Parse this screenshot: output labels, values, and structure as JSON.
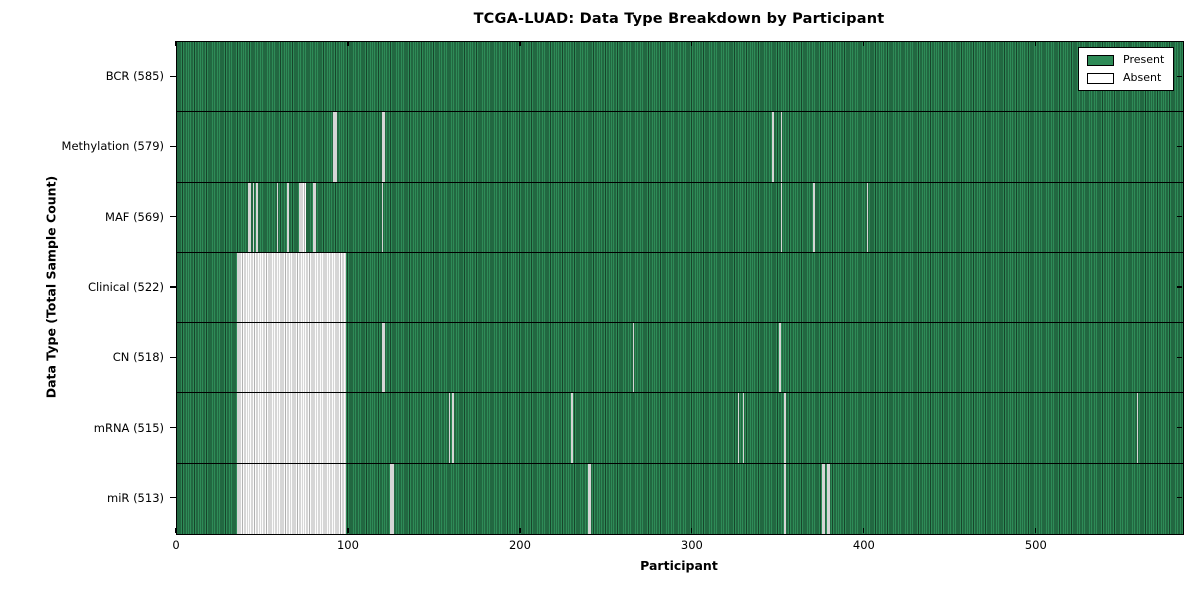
{
  "chart_data": {
    "type": "heatmap",
    "title": "TCGA-LUAD: Data Type Breakdown by Participant",
    "xlabel": "Participant",
    "ylabel": "Data Type (Total Sample Count)",
    "x_ticks": [
      0,
      100,
      200,
      300,
      400,
      500
    ],
    "x_range": [
      0,
      585
    ],
    "n_participants": 585,
    "grid": "per-participant column edges, black row separator lines",
    "colors": {
      "present": "#2E8B57",
      "absent": "#FCFCFC",
      "present_grid": "rgba(0,0,0,0.50)",
      "absent_grid": "rgba(0,0,0,0.30)",
      "border": "#000000"
    },
    "legend": {
      "position": "upper right",
      "entries": [
        {
          "label": "Present",
          "color": "#2E8B57"
        },
        {
          "label": "Absent",
          "color": "#FFFFFF"
        }
      ]
    },
    "rows": [
      {
        "name": "BCR",
        "total": 585,
        "label": "BCR (585)",
        "absent": []
      },
      {
        "name": "Methylation",
        "total": 579,
        "label": "Methylation (579)",
        "absent": [
          [
            91,
            92
          ],
          [
            119,
            120
          ],
          346,
          351
        ]
      },
      {
        "name": "MAF",
        "total": 569,
        "label": "MAF (569)",
        "absent": [
          [
            41,
            42
          ],
          44,
          46,
          58,
          64,
          [
            71,
            74
          ],
          [
            79,
            80
          ],
          119,
          351,
          370,
          401
        ]
      },
      {
        "name": "Clinical",
        "total": 522,
        "label": "Clinical (522)",
        "absent": [
          [
            35,
            97
          ]
        ]
      },
      {
        "name": "CN",
        "total": 518,
        "label": "CN (518)",
        "absent": [
          [
            35,
            97
          ],
          [
            119,
            120
          ],
          265,
          350
        ]
      },
      {
        "name": "mRNA",
        "total": 515,
        "label": "mRNA (515)",
        "absent": [
          [
            35,
            97
          ],
          158,
          160,
          229,
          326,
          329,
          353,
          558
        ]
      },
      {
        "name": "miR",
        "total": 513,
        "label": "miR (513)",
        "absent": [
          [
            35,
            97
          ],
          [
            124,
            125
          ],
          [
            239,
            240
          ],
          353,
          [
            375,
            376
          ],
          [
            378,
            379
          ]
        ]
      }
    ]
  }
}
